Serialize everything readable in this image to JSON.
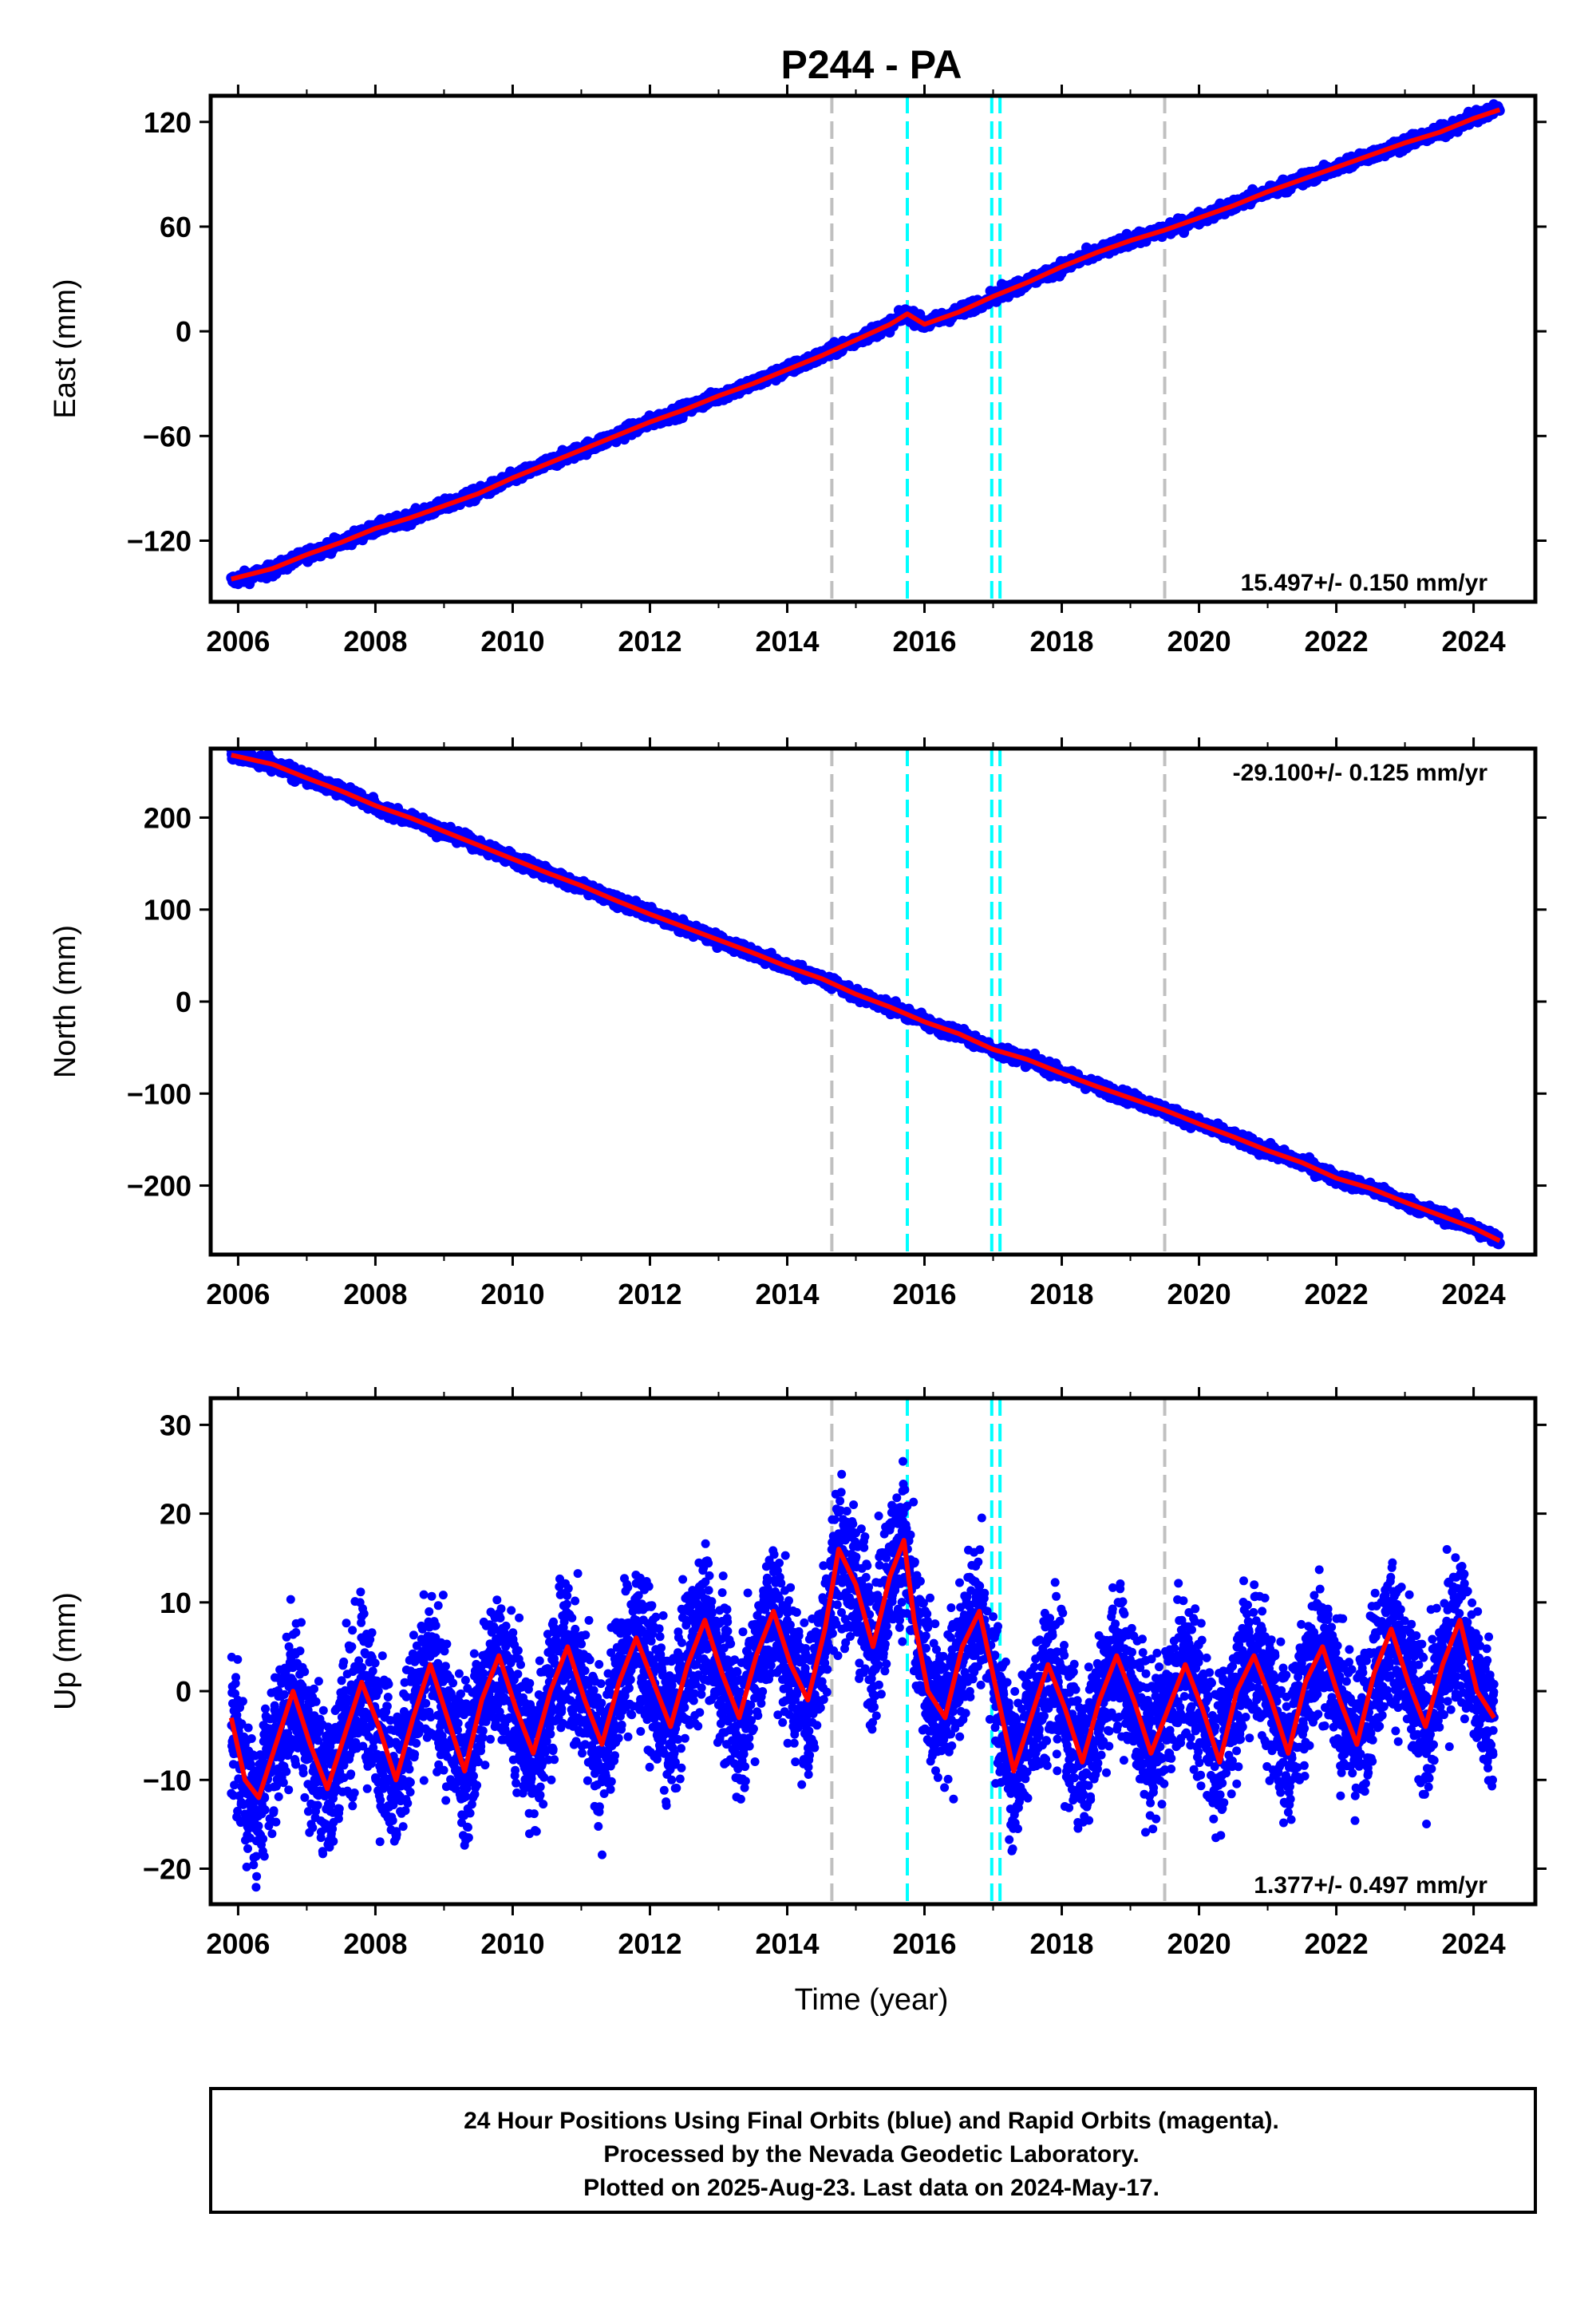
{
  "title": "P244 - PA",
  "xlabel": "Time (year)",
  "x_ticks": [
    2006,
    2008,
    2010,
    2012,
    2014,
    2016,
    2018,
    2020,
    2022,
    2024
  ],
  "xlim": [
    2005.6,
    2024.9
  ],
  "colors": {
    "final_orbits": "#0000ff",
    "model_fit": "#ff0000",
    "gray_event": "#c0c0c0",
    "cyan_event": "#00ffff"
  },
  "footer": [
    "24 Hour Positions Using Final Orbits (blue) and Rapid Orbits (magenta).",
    "Processed by the Nevada Geodetic Laboratory.",
    "Plotted on 2025-Aug-23. Last data on 2024-May-17."
  ],
  "chart_data": [
    {
      "type": "scatter",
      "ylabel": "East (mm)",
      "ylim": [
        -155,
        135
      ],
      "y_ticks": [
        -120,
        -60,
        0,
        60,
        120
      ],
      "rate_label": "15.497+/- 0.150 mm/yr",
      "rate_position": "bottom-right",
      "gray_lines": [
        2014.65,
        2019.5
      ],
      "cyan_lines": [
        2015.75,
        2016.98,
        2017.1
      ],
      "series": [
        {
          "name": "Final Orbits (blue)",
          "x": [
            2005.9,
            2006.5,
            2007.0,
            2007.5,
            2008.0,
            2008.5,
            2009.0,
            2009.5,
            2010.0,
            2010.5,
            2011.0,
            2011.5,
            2012.0,
            2012.5,
            2013.0,
            2013.5,
            2014.0,
            2014.5,
            2015.0,
            2015.5,
            2015.75,
            2016.0,
            2016.5,
            2017.0,
            2017.5,
            2018.0,
            2018.5,
            2019.0,
            2019.5,
            2020.0,
            2020.5,
            2021.0,
            2021.5,
            2022.0,
            2022.5,
            2023.0,
            2023.5,
            2024.0,
            2024.38
          ],
          "values": [
            -143,
            -137,
            -128,
            -121,
            -113,
            -107,
            -100,
            -93,
            -84,
            -76,
            -68,
            -60,
            -52,
            -45,
            -37,
            -30,
            -22,
            -14,
            -5,
            4,
            10,
            4,
            11,
            20,
            28,
            37,
            45,
            52,
            58,
            65,
            72,
            80,
            87,
            94,
            101,
            108,
            114,
            122,
            128
          ]
        },
        {
          "name": "Model fit",
          "x": [
            2005.9,
            2006.5,
            2007.0,
            2007.5,
            2008.0,
            2008.5,
            2009.0,
            2009.5,
            2010.0,
            2010.5,
            2011.0,
            2011.5,
            2012.0,
            2012.5,
            2013.0,
            2013.5,
            2014.0,
            2014.5,
            2015.0,
            2015.5,
            2015.75,
            2016.0,
            2016.5,
            2017.0,
            2017.5,
            2018.0,
            2018.5,
            2019.0,
            2019.5,
            2020.0,
            2020.5,
            2021.0,
            2021.5,
            2022.0,
            2022.5,
            2023.0,
            2023.5,
            2024.0,
            2024.38
          ],
          "values": [
            -142,
            -136,
            -128,
            -121,
            -113,
            -107,
            -100,
            -93,
            -84,
            -76,
            -68,
            -60,
            -52,
            -45,
            -37,
            -30,
            -22,
            -14,
            -5,
            4,
            10,
            4,
            11,
            20,
            28,
            37,
            45,
            52,
            58,
            65,
            72,
            80,
            87,
            94,
            101,
            108,
            114,
            122,
            127
          ]
        }
      ]
    },
    {
      "type": "scatter",
      "ylabel": "North (mm)",
      "ylim": [
        -275,
        275
      ],
      "y_ticks": [
        -200,
        -100,
        0,
        100,
        200
      ],
      "rate_label": "-29.100+/- 0.125 mm/yr",
      "rate_position": "top-right",
      "gray_lines": [
        2014.65,
        2019.5
      ],
      "cyan_lines": [
        2015.75,
        2016.98,
        2017.1
      ],
      "series": [
        {
          "name": "Final Orbits (blue)",
          "x": [
            2005.9,
            2006.5,
            2007.0,
            2007.5,
            2008.0,
            2008.5,
            2009.0,
            2009.5,
            2010.0,
            2010.5,
            2011.0,
            2011.5,
            2012.0,
            2012.5,
            2013.0,
            2013.5,
            2014.0,
            2014.5,
            2015.0,
            2015.5,
            2016.0,
            2016.5,
            2017.0,
            2017.5,
            2018.0,
            2018.5,
            2019.0,
            2019.5,
            2020.0,
            2020.5,
            2021.0,
            2021.5,
            2022.0,
            2022.5,
            2023.0,
            2023.5,
            2024.0,
            2024.38
          ],
          "values": [
            268,
            258,
            243,
            229,
            213,
            200,
            185,
            170,
            155,
            140,
            126,
            110,
            95,
            81,
            67,
            53,
            38,
            25,
            8,
            -6,
            -22,
            -35,
            -52,
            -63,
            -78,
            -92,
            -105,
            -118,
            -133,
            -147,
            -162,
            -175,
            -192,
            -203,
            -218,
            -232,
            -246,
            -260
          ]
        },
        {
          "name": "Model fit",
          "x": [
            2005.9,
            2006.5,
            2007.0,
            2007.5,
            2008.0,
            2008.5,
            2009.0,
            2009.5,
            2010.0,
            2010.5,
            2011.0,
            2011.5,
            2012.0,
            2012.5,
            2013.0,
            2013.5,
            2014.0,
            2014.5,
            2015.0,
            2015.5,
            2016.0,
            2016.5,
            2017.0,
            2017.5,
            2018.0,
            2018.5,
            2019.0,
            2019.5,
            2020.0,
            2020.5,
            2021.0,
            2021.5,
            2022.0,
            2022.5,
            2023.0,
            2023.5,
            2024.0,
            2024.38
          ],
          "values": [
            268,
            258,
            243,
            229,
            213,
            200,
            185,
            170,
            155,
            140,
            126,
            110,
            95,
            81,
            67,
            53,
            38,
            25,
            8,
            -6,
            -22,
            -35,
            -52,
            -63,
            -78,
            -92,
            -105,
            -118,
            -133,
            -147,
            -162,
            -175,
            -192,
            -203,
            -218,
            -232,
            -246,
            -260
          ]
        }
      ]
    },
    {
      "type": "scatter",
      "ylabel": "Up (mm)",
      "ylim": [
        -24,
        33
      ],
      "y_ticks": [
        -20,
        -10,
        0,
        10,
        20,
        30
      ],
      "rate_label": "1.377+/- 0.497 mm/yr",
      "rate_position": "bottom-right",
      "gray_lines": [
        2014.65,
        2019.5
      ],
      "cyan_lines": [
        2015.75,
        2016.98,
        2017.1
      ],
      "series": [
        {
          "name": "Final Orbits (blue)",
          "x": [
            2005.9,
            2006.1,
            2006.3,
            2006.55,
            2006.8,
            2007.05,
            2007.3,
            2007.55,
            2007.8,
            2008.05,
            2008.3,
            2008.55,
            2008.8,
            2009.05,
            2009.3,
            2009.55,
            2009.8,
            2010.05,
            2010.3,
            2010.55,
            2010.8,
            2011.05,
            2011.3,
            2011.55,
            2011.8,
            2012.05,
            2012.3,
            2012.55,
            2012.8,
            2013.05,
            2013.3,
            2013.55,
            2013.8,
            2014.05,
            2014.3,
            2014.55,
            2014.75,
            2015.0,
            2015.25,
            2015.5,
            2015.7,
            2015.85,
            2016.05,
            2016.3,
            2016.55,
            2016.8,
            2017.05,
            2017.3,
            2017.55,
            2017.8,
            2018.05,
            2018.3,
            2018.55,
            2018.8,
            2019.05,
            2019.3,
            2019.55,
            2019.8,
            2020.05,
            2020.3,
            2020.55,
            2020.8,
            2021.05,
            2021.3,
            2021.55,
            2021.8,
            2022.05,
            2022.3,
            2022.55,
            2022.8,
            2023.05,
            2023.3,
            2023.55,
            2023.8,
            2024.05,
            2024.3
          ],
          "values": [
            -3,
            -10,
            -13,
            -6,
            0,
            -6,
            -11,
            -5,
            1,
            -4,
            -10,
            -3,
            3,
            -3,
            -9,
            -1,
            4,
            -2,
            -8,
            0,
            5,
            -1,
            -7,
            1,
            7,
            1,
            -5,
            3,
            8,
            2,
            -4,
            4,
            9,
            3,
            -2,
            7,
            16,
            12,
            5,
            13,
            18,
            8,
            0,
            -3,
            5,
            9,
            0,
            -10,
            -3,
            3,
            -2,
            -9,
            -1,
            4,
            -1,
            -7,
            -2,
            3,
            -2,
            -8,
            0,
            5,
            -1,
            -7,
            1,
            6,
            -1,
            -6,
            2,
            7,
            1,
            -5,
            3,
            8,
            0,
            -3
          ]
        },
        {
          "name": "Model fit",
          "x": [
            2005.9,
            2006.1,
            2006.3,
            2006.55,
            2006.8,
            2007.05,
            2007.3,
            2007.55,
            2007.8,
            2008.05,
            2008.3,
            2008.55,
            2008.8,
            2009.05,
            2009.3,
            2009.55,
            2009.8,
            2010.05,
            2010.3,
            2010.55,
            2010.8,
            2011.05,
            2011.3,
            2011.55,
            2011.8,
            2012.05,
            2012.3,
            2012.55,
            2012.8,
            2013.05,
            2013.3,
            2013.55,
            2013.8,
            2014.05,
            2014.3,
            2014.55,
            2014.75,
            2015.0,
            2015.25,
            2015.5,
            2015.7,
            2015.85,
            2016.05,
            2016.3,
            2016.55,
            2016.8,
            2017.05,
            2017.3,
            2017.55,
            2017.8,
            2018.05,
            2018.3,
            2018.55,
            2018.8,
            2019.05,
            2019.3,
            2019.55,
            2019.8,
            2020.05,
            2020.3,
            2020.55,
            2020.8,
            2021.05,
            2021.3,
            2021.55,
            2021.8,
            2022.05,
            2022.3,
            2022.55,
            2022.8,
            2023.05,
            2023.3,
            2023.55,
            2023.8,
            2024.05,
            2024.3
          ],
          "values": [
            -3,
            -10,
            -12,
            -6,
            0,
            -6,
            -11,
            -5,
            1,
            -4,
            -10,
            -3,
            3,
            -3,
            -9,
            -1,
            4,
            -2,
            -7,
            0,
            5,
            -1,
            -6,
            1,
            6,
            1,
            -4,
            3,
            8,
            2,
            -3,
            4,
            9,
            3,
            -1,
            7,
            16,
            12,
            5,
            13,
            17,
            8,
            0,
            -3,
            5,
            9,
            0,
            -9,
            -3,
            3,
            -2,
            -8,
            -1,
            4,
            -1,
            -7,
            -2,
            3,
            -2,
            -8,
            0,
            4,
            -1,
            -7,
            1,
            5,
            -1,
            -6,
            2,
            7,
            1,
            -4,
            3,
            8,
            0,
            -3
          ]
        }
      ]
    }
  ]
}
